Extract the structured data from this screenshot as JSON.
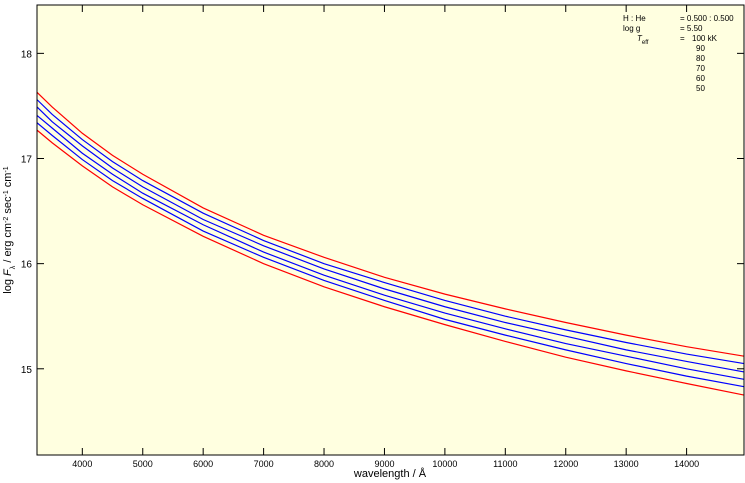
{
  "chart_data": {
    "type": "line",
    "x_label": "wavelength / Å",
    "y_label_parts": [
      {
        "text": "log ",
        "style": "normal"
      },
      {
        "text": "F",
        "style": "italic"
      },
      {
        "text": "λ",
        "style": "sub"
      },
      {
        "text": " / erg cm",
        "style": "normal"
      },
      {
        "text": "-2",
        "style": "sup"
      },
      {
        "text": " sec",
        "style": "normal"
      },
      {
        "text": "-1",
        "style": "sup"
      },
      {
        "text": " cm",
        "style": "normal"
      },
      {
        "text": "-1",
        "style": "sup"
      }
    ],
    "annotations": [
      {
        "label": "H : He",
        "value": "= 0.500 : 0.500"
      },
      {
        "label": "log g",
        "value": "= 5.50"
      }
    ],
    "legend_label": {
      "text": "T",
      "sub": "eff",
      "value": "="
    },
    "x": [
      3250,
      3500,
      4000,
      4500,
      5000,
      6000,
      7000,
      8000,
      9000,
      10000,
      11000,
      12000,
      13000,
      14000,
      14950
    ],
    "series": [
      {
        "name": "100 kK",
        "color": "#ff0000",
        "values": [
          17.63,
          17.49,
          17.24,
          17.03,
          16.85,
          16.53,
          16.27,
          16.06,
          15.87,
          15.71,
          15.57,
          15.44,
          15.32,
          15.21,
          15.12
        ]
      },
      {
        "name": "90",
        "color": "#0000ff",
        "values": [
          17.56,
          17.42,
          17.18,
          16.97,
          16.79,
          16.48,
          16.22,
          16.0,
          15.82,
          15.65,
          15.5,
          15.37,
          15.25,
          15.14,
          15.05
        ]
      },
      {
        "name": "80",
        "color": "#0000ff",
        "values": [
          17.49,
          17.35,
          17.12,
          16.91,
          16.73,
          16.42,
          16.17,
          15.95,
          15.76,
          15.59,
          15.44,
          15.31,
          15.18,
          15.07,
          14.97
        ]
      },
      {
        "name": "70",
        "color": "#0000ff",
        "values": [
          17.41,
          17.29,
          17.05,
          16.85,
          16.67,
          16.37,
          16.11,
          15.89,
          15.7,
          15.53,
          15.38,
          15.24,
          15.12,
          15.0,
          14.9
        ]
      },
      {
        "name": "60",
        "color": "#0000ff",
        "values": [
          17.34,
          17.22,
          16.99,
          16.79,
          16.62,
          16.31,
          16.06,
          15.84,
          15.65,
          15.47,
          15.32,
          15.18,
          15.05,
          14.93,
          14.83
        ]
      },
      {
        "name": "50",
        "color": "#ff0000",
        "values": [
          17.27,
          17.15,
          16.93,
          16.73,
          16.56,
          16.26,
          16.0,
          15.78,
          15.59,
          15.42,
          15.26,
          15.11,
          14.98,
          14.86,
          14.75
        ]
      }
    ],
    "xlim": [
      3250,
      14950
    ],
    "ylim": [
      14.18,
      18.46
    ],
    "xticks": [
      4000,
      5000,
      6000,
      7000,
      8000,
      9000,
      10000,
      11000,
      12000,
      13000,
      14000
    ],
    "yticks": [
      15,
      16,
      17,
      18
    ],
    "background": "#ffffe0",
    "legend_title_color": "#0000ff"
  }
}
